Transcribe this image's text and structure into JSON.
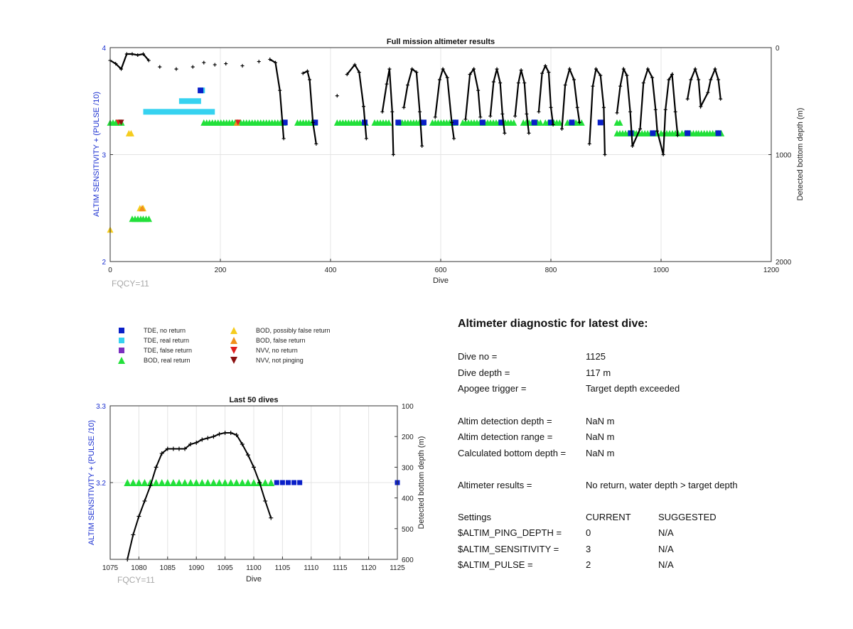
{
  "chart_data": [
    {
      "type": "scatter",
      "title": "Full mission altimeter results",
      "xlabel": "Dive",
      "ylabel": "ALTIM SENSITIVITY + (PULSE /10)",
      "y2label": "Detected bottom depth (m)",
      "xlim": [
        0,
        1200
      ],
      "ylim": [
        2,
        4
      ],
      "y2lim": [
        2000,
        0
      ],
      "xticks": [
        "0",
        "200",
        "400",
        "600",
        "800",
        "1000",
        "1200"
      ],
      "yticks": [
        "2",
        "3",
        "4"
      ],
      "y2ticks": [
        "0",
        "1000",
        "2000"
      ],
      "grid": true,
      "note": "FQCY=11",
      "colors": {
        "tde_no_return": "#0a1fc8",
        "tde_real_return": "#36d2f0",
        "tde_false_return": "#7b2fc0",
        "bod_real_return": "#22e03a",
        "bod_possibly_false": "#f5cc1e",
        "bod_false": "#f0901a",
        "nvv_no_return": "#e02020",
        "nvv_not_pinging": "#8a1010",
        "depth_line": "#000000"
      },
      "depth_curve": [
        [
          0,
          120
        ],
        [
          10,
          150
        ],
        [
          20,
          200
        ],
        [
          30,
          60
        ],
        [
          40,
          60
        ],
        [
          50,
          70
        ],
        [
          60,
          60
        ],
        [
          70,
          120
        ],
        [
          90,
          180
        ],
        [
          120,
          200
        ],
        [
          150,
          180
        ],
        [
          170,
          140
        ],
        [
          190,
          160
        ],
        [
          210,
          150
        ],
        [
          240,
          170
        ],
        [
          270,
          130
        ],
        [
          290,
          110
        ],
        [
          300,
          140
        ],
        [
          308,
          400
        ],
        [
          315,
          850
        ],
        [
          350,
          240
        ],
        [
          358,
          220
        ],
        [
          362,
          300
        ],
        [
          368,
          700
        ],
        [
          374,
          900
        ],
        [
          412,
          450
        ],
        [
          430,
          250
        ],
        [
          444,
          160
        ],
        [
          452,
          230
        ],
        [
          460,
          550
        ],
        [
          465,
          850
        ],
        [
          494,
          600
        ],
        [
          502,
          340
        ],
        [
          507,
          200
        ],
        [
          512,
          600
        ],
        [
          514,
          1000
        ],
        [
          533,
          560
        ],
        [
          540,
          350
        ],
        [
          548,
          200
        ],
        [
          556,
          230
        ],
        [
          562,
          600
        ],
        [
          566,
          920
        ],
        [
          590,
          650
        ],
        [
          598,
          300
        ],
        [
          604,
          200
        ],
        [
          612,
          280
        ],
        [
          620,
          700
        ],
        [
          624,
          850
        ],
        [
          645,
          670
        ],
        [
          653,
          250
        ],
        [
          660,
          200
        ],
        [
          668,
          400
        ],
        [
          672,
          650
        ],
        [
          690,
          640
        ],
        [
          696,
          320
        ],
        [
          702,
          200
        ],
        [
          708,
          330
        ],
        [
          712,
          620
        ],
        [
          716,
          800
        ],
        [
          735,
          640
        ],
        [
          741,
          330
        ],
        [
          746,
          210
        ],
        [
          752,
          330
        ],
        [
          756,
          620
        ],
        [
          760,
          800
        ],
        [
          778,
          600
        ],
        [
          784,
          240
        ],
        [
          790,
          170
        ],
        [
          796,
          230
        ],
        [
          800,
          560
        ],
        [
          804,
          720
        ],
        [
          820,
          760
        ],
        [
          826,
          350
        ],
        [
          834,
          200
        ],
        [
          842,
          300
        ],
        [
          848,
          560
        ],
        [
          852,
          700
        ],
        [
          870,
          900
        ],
        [
          876,
          360
        ],
        [
          882,
          200
        ],
        [
          890,
          260
        ],
        [
          896,
          560
        ],
        [
          898,
          1000
        ],
        [
          920,
          610
        ],
        [
          926,
          360
        ],
        [
          932,
          200
        ],
        [
          938,
          260
        ],
        [
          944,
          600
        ],
        [
          948,
          920
        ],
        [
          962,
          760
        ],
        [
          968,
          330
        ],
        [
          976,
          200
        ],
        [
          984,
          280
        ],
        [
          990,
          580
        ],
        [
          993,
          780
        ],
        [
          1004,
          1000
        ],
        [
          1008,
          580
        ],
        [
          1014,
          300
        ],
        [
          1020,
          250
        ],
        [
          1026,
          600
        ],
        [
          1030,
          820
        ],
        [
          1048,
          480
        ],
        [
          1054,
          300
        ],
        [
          1062,
          200
        ],
        [
          1068,
          300
        ],
        [
          1072,
          550
        ],
        [
          1085,
          420
        ],
        [
          1090,
          300
        ],
        [
          1098,
          200
        ],
        [
          1104,
          300
        ],
        [
          1108,
          480
        ]
      ],
      "tde_real_return": [
        [
          60,
          3.4,
          130
        ],
        [
          125,
          3.5,
          40
        ],
        [
          162,
          3.6,
          10
        ]
      ],
      "tde_no_return": [
        [
          164,
          3.6
        ],
        [
          317,
          3.3
        ],
        [
          372,
          3.3
        ],
        [
          462,
          3.3
        ],
        [
          523,
          3.3
        ],
        [
          569,
          3.3
        ],
        [
          627,
          3.3
        ],
        [
          676,
          3.3
        ],
        [
          710,
          3.3
        ],
        [
          770,
          3.3
        ],
        [
          800,
          3.3
        ],
        [
          838,
          3.3
        ],
        [
          890,
          3.3
        ],
        [
          945,
          3.2
        ],
        [
          985,
          3.2
        ],
        [
          1048,
          3.2
        ],
        [
          1104,
          3.2
        ]
      ],
      "bod_real_return_segments": [
        [
          0,
          3.3,
          25
        ],
        [
          170,
          3.3,
          145
        ],
        [
          340,
          3.3,
          34
        ],
        [
          412,
          3.3,
          55
        ],
        [
          480,
          3.3,
          30
        ],
        [
          525,
          3.3,
          45
        ],
        [
          585,
          3.3,
          45
        ],
        [
          640,
          3.3,
          40
        ],
        [
          680,
          3.3,
          30
        ],
        [
          712,
          3.3,
          25
        ],
        [
          750,
          3.3,
          35
        ],
        [
          790,
          3.3,
          30
        ],
        [
          830,
          3.3,
          30
        ],
        [
          920,
          3.3,
          8
        ],
        [
          920,
          3.2,
          35
        ],
        [
          955,
          3.2,
          40
        ],
        [
          1000,
          3.2,
          35
        ],
        [
          1038,
          3.2,
          30
        ],
        [
          1068,
          3.2,
          45
        ],
        [
          40,
          2.4,
          20
        ],
        [
          60,
          2.4,
          15
        ]
      ],
      "bod_possibly_false": [
        [
          0,
          2.3
        ],
        [
          34,
          3.2
        ],
        [
          38,
          3.2
        ],
        [
          54,
          2.5
        ],
        [
          60,
          2.5
        ]
      ],
      "bod_false": [
        [
          58,
          2.5
        ],
        [
          230,
          3.3
        ]
      ],
      "nvv_no_return": [
        [
          15,
          3.3
        ],
        [
          232,
          3.3
        ]
      ],
      "nvv_not_pinging": [
        [
          20,
          3.3
        ]
      ]
    },
    {
      "type": "scatter",
      "title": "Last 50 dives",
      "xlabel": "Dive",
      "ylabel": "ALTIM SENSITIVITY + (PULSE /10)",
      "y2label": "Detected bottom depth (m)",
      "xlim": [
        1075,
        1125
      ],
      "ylim": [
        3.1,
        3.3
      ],
      "y2lim": [
        600,
        100
      ],
      "xticks": [
        "1075",
        "1080",
        "1085",
        "1090",
        "1095",
        "1100",
        "1105",
        "1110",
        "1115",
        "1120",
        "1125"
      ],
      "yticks": [
        "3.2",
        "3.3"
      ],
      "y2ticks": [
        "100",
        "200",
        "300",
        "400",
        "500",
        "600"
      ],
      "grid": true,
      "note": "FQCY=11",
      "depth_curve": [
        [
          1078,
          600
        ],
        [
          1079,
          520
        ],
        [
          1080,
          460
        ],
        [
          1081,
          410
        ],
        [
          1082,
          360
        ],
        [
          1083,
          300
        ],
        [
          1084,
          255
        ],
        [
          1085,
          240
        ],
        [
          1086,
          240
        ],
        [
          1087,
          240
        ],
        [
          1088,
          240
        ],
        [
          1089,
          225
        ],
        [
          1090,
          220
        ],
        [
          1091,
          210
        ],
        [
          1092,
          205
        ],
        [
          1093,
          200
        ],
        [
          1094,
          192
        ],
        [
          1095,
          188
        ],
        [
          1096,
          188
        ],
        [
          1097,
          195
        ],
        [
          1098,
          225
        ],
        [
          1099,
          260
        ],
        [
          1100,
          300
        ],
        [
          1101,
          350
        ],
        [
          1102,
          410
        ],
        [
          1103,
          465
        ]
      ],
      "bod_real_return": [
        [
          1078,
          3.2
        ],
        [
          1079,
          3.2
        ],
        [
          1080,
          3.2
        ],
        [
          1081,
          3.2
        ],
        [
          1082,
          3.2
        ],
        [
          1083,
          3.2
        ],
        [
          1084,
          3.2
        ],
        [
          1085,
          3.2
        ],
        [
          1086,
          3.2
        ],
        [
          1087,
          3.2
        ],
        [
          1088,
          3.2
        ],
        [
          1089,
          3.2
        ],
        [
          1090,
          3.2
        ],
        [
          1091,
          3.2
        ],
        [
          1092,
          3.2
        ],
        [
          1093,
          3.2
        ],
        [
          1094,
          3.2
        ],
        [
          1095,
          3.2
        ],
        [
          1096,
          3.2
        ],
        [
          1097,
          3.2
        ],
        [
          1098,
          3.2
        ],
        [
          1099,
          3.2
        ],
        [
          1100,
          3.2
        ],
        [
          1101,
          3.2
        ],
        [
          1102,
          3.2
        ],
        [
          1103,
          3.2
        ]
      ],
      "tde_no_return": [
        [
          1104,
          3.2
        ],
        [
          1105,
          3.2
        ],
        [
          1106,
          3.2
        ],
        [
          1107,
          3.2
        ],
        [
          1108,
          3.2
        ],
        [
          1125,
          3.2
        ]
      ]
    }
  ],
  "legend": {
    "items": [
      {
        "label": "TDE, no return",
        "symbol": "square",
        "color": "#0a1fc8"
      },
      {
        "label": "TDE, real return",
        "symbol": "square",
        "color": "#36d2f0"
      },
      {
        "label": "TDE, false return",
        "symbol": "square",
        "color": "#7b2fc0"
      },
      {
        "label": "BOD, real return",
        "symbol": "triangle-up",
        "color": "#22e03a"
      },
      {
        "label": "BOD, possibly false return",
        "symbol": "triangle-up",
        "color": "#f5cc1e"
      },
      {
        "label": "BOD, false return",
        "symbol": "triangle-up",
        "color": "#f0901a"
      },
      {
        "label": "NVV, no return",
        "symbol": "triangle-down",
        "color": "#e02020"
      },
      {
        "label": "NVV, not pinging",
        "symbol": "triangle-down",
        "color": "#8a1010"
      }
    ]
  },
  "diagnostic": {
    "title": "Altimeter diagnostic for latest dive:",
    "dive_no_label": "Dive no =",
    "dive_no": "1125",
    "dive_depth_label": "Dive depth =",
    "dive_depth": "117 m",
    "apogee_label": "Apogee trigger =",
    "apogee": "Target depth exceeded",
    "detection_depth_label": "Altim detection depth =",
    "detection_depth": "NaN m",
    "detection_range_label": "Altim detection range =",
    "detection_range": "NaN m",
    "bottom_depth_label": "Calculated bottom depth =",
    "bottom_depth": "NaN m",
    "results_label": "Altimeter results =",
    "results": "No return, water depth > target depth",
    "settings_label": "Settings",
    "current_label": "CURRENT",
    "suggested_label": "SUGGESTED",
    "settings": [
      {
        "name": "$ALTIM_PING_DEPTH =",
        "current": "0",
        "suggested": "N/A"
      },
      {
        "name": "$ALTIM_SENSITIVITY =",
        "current": "3",
        "suggested": "N/A"
      },
      {
        "name": "$ALTIM_PULSE =",
        "current": "2",
        "suggested": "N/A"
      }
    ]
  }
}
